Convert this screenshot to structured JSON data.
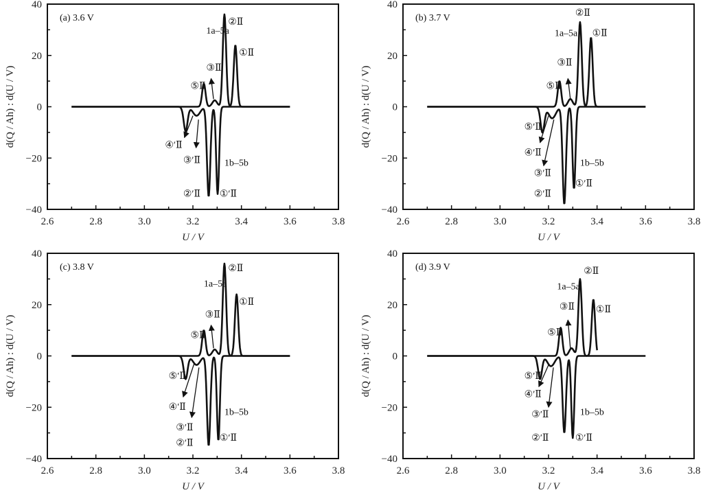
{
  "chart_data": [
    {
      "type": "line",
      "title": "(a) 3.6 V",
      "xlabel": "U / V",
      "ylabel": "d(Q / Ah) : d(U / V)",
      "xlim": [
        2.6,
        3.8
      ],
      "ylim": [
        -40,
        40
      ],
      "xticks": [
        "2.6",
        "2.8",
        "3.0",
        "3.2",
        "3.4",
        "3.6",
        "3.8"
      ],
      "yticks": [
        "-40",
        "-20",
        "0",
        "20",
        "40"
      ],
      "grid": false,
      "series": [
        {
          "name": "charge (1a-5a)",
          "range": [
            2.7,
            3.6
          ],
          "peaks": [
            [
              3.245,
              9,
              0.007
            ],
            [
              3.29,
              2.5,
              0.01
            ],
            [
              3.33,
              36,
              0.007
            ],
            [
              3.375,
              24,
              0.007
            ]
          ]
        },
        {
          "name": "discharge (1b-5b)",
          "range": [
            2.7,
            3.6
          ],
          "peaks": [
            [
              3.17,
              -9.5,
              0.008
            ],
            [
              3.215,
              -3.5,
              0.015
            ],
            [
              3.265,
              -35,
              0.007
            ],
            [
              3.302,
              -34,
              0.006
            ]
          ]
        }
      ],
      "annotations": [
        {
          "text": "1a–5a",
          "x": 3.255,
          "y": 28.5
        },
        {
          "text": "②Ⅱ",
          "x": 3.345,
          "y": 32
        },
        {
          "text": "①Ⅱ",
          "x": 3.39,
          "y": 20
        },
        {
          "text": "③Ⅱ",
          "x": 3.255,
          "y": 14
        },
        {
          "text": "⑤Ⅱ",
          "x": 3.19,
          "y": 7
        },
        {
          "text": "④′Ⅱ",
          "x": 3.085,
          "y": -16
        },
        {
          "text": "③′Ⅱ",
          "x": 3.16,
          "y": -22
        },
        {
          "text": "1b–5b",
          "x": 3.33,
          "y": -23
        },
        {
          "text": "②′Ⅱ",
          "x": 3.16,
          "y": -35
        },
        {
          "text": "①′Ⅱ",
          "x": 3.31,
          "y": -35
        }
      ],
      "arrows": [
        [
          3.285,
          3,
          3.275,
          11
        ],
        [
          3.2,
          -3.5,
          3.165,
          -12
        ],
        [
          3.223,
          -5,
          3.213,
          -16
        ]
      ]
    },
    {
      "type": "line",
      "title": "(b) 3.7 V",
      "xlabel": "U / V",
      "ylabel": "d(Q / Ah) : d(U / V)",
      "xlim": [
        2.6,
        3.8
      ],
      "ylim": [
        -40,
        40
      ],
      "xticks": [
        "2.6",
        "2.8",
        "3.0",
        "3.2",
        "3.4",
        "3.6",
        "3.8"
      ],
      "yticks": [
        "-40",
        "-20",
        "0",
        "20",
        "40"
      ],
      "grid": false,
      "series": [
        {
          "name": "charge (1a-5a)",
          "range": [
            2.7,
            3.6
          ],
          "peaks": [
            [
              3.245,
              10,
              0.007
            ],
            [
              3.29,
              3,
              0.01
            ],
            [
              3.33,
              33,
              0.007
            ],
            [
              3.375,
              27,
              0.007
            ]
          ]
        },
        {
          "name": "discharge (1b-5b)",
          "range": [
            2.7,
            3.6
          ],
          "peaks": [
            [
              3.175,
              -10,
              0.008
            ],
            [
              3.215,
              -4.5,
              0.015
            ],
            [
              3.265,
              -38,
              0.007
            ],
            [
              3.305,
              -32,
              0.006
            ]
          ]
        }
      ],
      "annotations": [
        {
          "text": "②Ⅱ",
          "x": 3.31,
          "y": 35.5
        },
        {
          "text": "1a–5a",
          "x": 3.225,
          "y": 27.5
        },
        {
          "text": "①Ⅱ",
          "x": 3.38,
          "y": 27.5
        },
        {
          "text": "③Ⅱ",
          "x": 3.235,
          "y": 16
        },
        {
          "text": "⑤Ⅱ",
          "x": 3.19,
          "y": 7
        },
        {
          "text": "⑤′Ⅱ",
          "x": 3.1,
          "y": -9
        },
        {
          "text": "④′Ⅱ",
          "x": 3.1,
          "y": -19
        },
        {
          "text": "③′Ⅱ",
          "x": 3.14,
          "y": -27
        },
        {
          "text": "1b–5b",
          "x": 3.33,
          "y": -23
        },
        {
          "text": "②′Ⅱ",
          "x": 3.14,
          "y": -35
        },
        {
          "text": "①′Ⅱ",
          "x": 3.31,
          "y": -31
        }
      ],
      "arrows": [
        [
          3.29,
          3,
          3.28,
          11
        ],
        [
          3.2,
          -3.5,
          3.165,
          -14
        ],
        [
          3.222,
          -5,
          3.18,
          -23
        ]
      ]
    },
    {
      "type": "line",
      "title": "(c) 3.8 V",
      "xlabel": "U / V",
      "ylabel": "d(Q / Ah) : d(U / V)",
      "xlim": [
        2.6,
        3.8
      ],
      "ylim": [
        -40,
        40
      ],
      "xticks": [
        "2.6",
        "2.8",
        "3.0",
        "3.2",
        "3.4",
        "3.6",
        "3.8"
      ],
      "yticks": [
        "-40",
        "-20",
        "0",
        "20",
        "40"
      ],
      "grid": false,
      "series": [
        {
          "name": "charge (1a-5a)",
          "range": [
            2.7,
            3.6
          ],
          "peaks": [
            [
              3.245,
              10,
              0.007
            ],
            [
              3.29,
              2.5,
              0.01
            ],
            [
              3.33,
              36,
              0.007
            ],
            [
              3.38,
              24,
              0.007
            ]
          ]
        },
        {
          "name": "discharge (1b-5b)",
          "range": [
            2.7,
            3.6
          ],
          "peaks": [
            [
              3.17,
              -9,
              0.008
            ],
            [
              3.215,
              -3.5,
              0.015
            ],
            [
              3.265,
              -35,
              0.007
            ],
            [
              3.305,
              -33,
              0.006
            ]
          ]
        }
      ],
      "annotations": [
        {
          "text": "②Ⅱ",
          "x": 3.345,
          "y": 33
        },
        {
          "text": "1a–5a",
          "x": 3.245,
          "y": 27
        },
        {
          "text": "①Ⅱ",
          "x": 3.39,
          "y": 20
        },
        {
          "text": "③Ⅱ",
          "x": 3.25,
          "y": 15
        },
        {
          "text": "⑤Ⅱ",
          "x": 3.19,
          "y": 7
        },
        {
          "text": "⑤′Ⅱ",
          "x": 3.1,
          "y": -9
        },
        {
          "text": "④′Ⅱ",
          "x": 3.1,
          "y": -21
        },
        {
          "text": "③′Ⅱ",
          "x": 3.13,
          "y": -29
        },
        {
          "text": "1b–5b",
          "x": 3.33,
          "y": -23
        },
        {
          "text": "②′Ⅱ",
          "x": 3.13,
          "y": -35
        },
        {
          "text": "①′Ⅱ",
          "x": 3.31,
          "y": -33
        }
      ],
      "arrows": [
        [
          3.285,
          3,
          3.275,
          12
        ],
        [
          3.205,
          -3,
          3.16,
          -16
        ],
        [
          3.225,
          -4.5,
          3.195,
          -24
        ]
      ]
    },
    {
      "type": "line",
      "title": "(d) 3.9 V",
      "xlabel": "U / V",
      "ylabel": "d(Q / Ah) : d(U / V)",
      "xlim": [
        2.6,
        3.8
      ],
      "ylim": [
        -40,
        40
      ],
      "xticks": [
        "2.6",
        "2.8",
        "3.0",
        "3.2",
        "3.4",
        "3.6",
        "3.8"
      ],
      "yticks": [
        "-40",
        "-20",
        "0",
        "20",
        "40"
      ],
      "grid": false,
      "series": [
        {
          "name": "charge (1a-5a)",
          "range": [
            2.7,
            3.4
          ],
          "peaks": [
            [
              3.25,
              11,
              0.007
            ],
            [
              3.295,
              3,
              0.01
            ],
            [
              3.33,
              30,
              0.007
            ],
            [
              3.385,
              22,
              0.007
            ]
          ]
        },
        {
          "name": "discharge (1b-5b)",
          "range": [
            2.7,
            3.6
          ],
          "peaks": [
            [
              3.165,
              -9,
              0.008
            ],
            [
              3.21,
              -4,
              0.015
            ],
            [
              3.265,
              -30,
              0.007
            ],
            [
              3.3,
              -32,
              0.006
            ]
          ]
        }
      ],
      "annotations": [
        {
          "text": "②Ⅱ",
          "x": 3.345,
          "y": 32
        },
        {
          "text": "1a–5a",
          "x": 3.235,
          "y": 26
        },
        {
          "text": "①Ⅱ",
          "x": 3.395,
          "y": 17
        },
        {
          "text": "③Ⅱ",
          "x": 3.245,
          "y": 18
        },
        {
          "text": "⑤Ⅱ",
          "x": 3.195,
          "y": 8
        },
        {
          "text": "⑤′Ⅱ",
          "x": 3.1,
          "y": -9
        },
        {
          "text": "④′Ⅱ",
          "x": 3.1,
          "y": -16
        },
        {
          "text": "③′Ⅱ",
          "x": 3.13,
          "y": -24
        },
        {
          "text": "1b–5b",
          "x": 3.33,
          "y": -23
        },
        {
          "text": "②′Ⅱ",
          "x": 3.13,
          "y": -33
        },
        {
          "text": "①′Ⅱ",
          "x": 3.31,
          "y": -33
        }
      ],
      "arrows": [
        [
          3.29,
          3,
          3.28,
          14
        ],
        [
          3.2,
          -3.5,
          3.16,
          -12
        ],
        [
          3.22,
          -4.5,
          3.2,
          -20
        ]
      ]
    }
  ]
}
